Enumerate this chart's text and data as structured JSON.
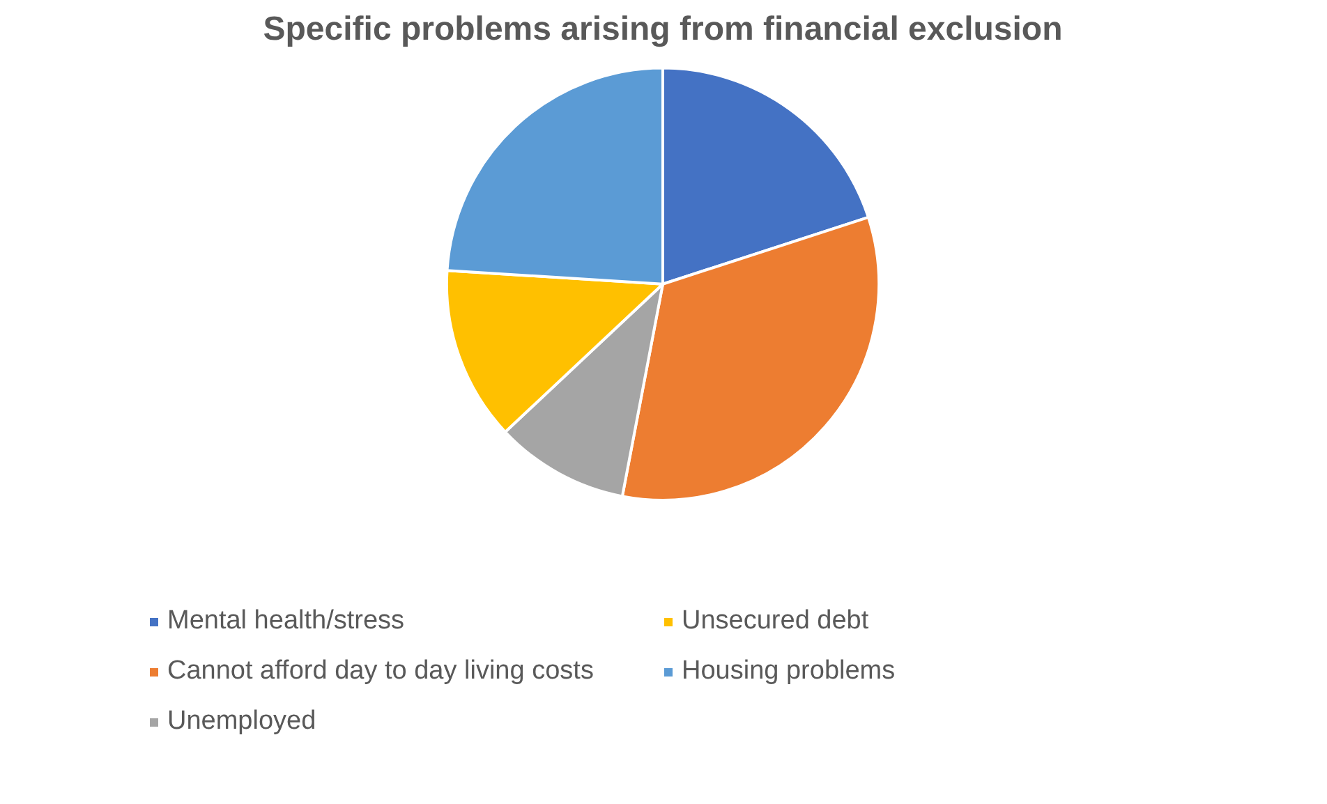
{
  "chart_data": {
    "type": "pie",
    "title": "Specific problems arising from financial exclusion",
    "categories": [
      "Mental health/stress",
      "Cannot afford day to day living costs",
      "Unemployed",
      "Unsecured debt",
      "Housing problems"
    ],
    "values": [
      20,
      33,
      10,
      13,
      24
    ],
    "colors": [
      "#4472c4",
      "#ed7d31",
      "#a5a5a5",
      "#ffc000",
      "#5b9bd5"
    ],
    "legend": "bottom"
  }
}
